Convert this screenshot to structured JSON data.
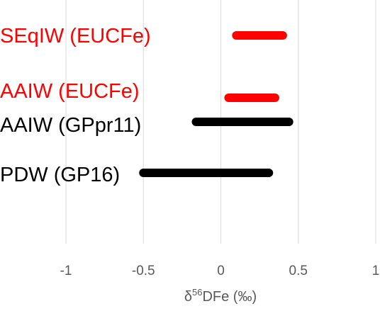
{
  "chart_data": {
    "type": "range-bar",
    "title": "",
    "xlabel": "δ56DFe (‰)",
    "xlabel_base": "δ",
    "xlabel_sup": "56",
    "xlabel_rest": "DFe (‰)",
    "xlim": [
      -1,
      1
    ],
    "x_ticks": [
      {
        "value": -1,
        "label": "-1"
      },
      {
        "value": -0.5,
        "label": "-0.5"
      },
      {
        "value": 0,
        "label": "0"
      },
      {
        "value": 0.5,
        "label": "0.5"
      },
      {
        "value": 1,
        "label": "1"
      }
    ],
    "grid": "vertical",
    "series": [
      {
        "label": "SEqIW (EUCFe)",
        "min": 0.1,
        "max": 0.4,
        "color": "#ff0000"
      },
      {
        "label": "AAIW (EUCFe)",
        "min": 0.05,
        "max": 0.35,
        "color": "#ff0000"
      },
      {
        "label": "AAIW (GPpr11)",
        "min": -0.16,
        "max": 0.44,
        "color": "#000000"
      },
      {
        "label": "PDW (GP16)",
        "min": -0.5,
        "max": 0.31,
        "color": "#000000"
      }
    ]
  }
}
